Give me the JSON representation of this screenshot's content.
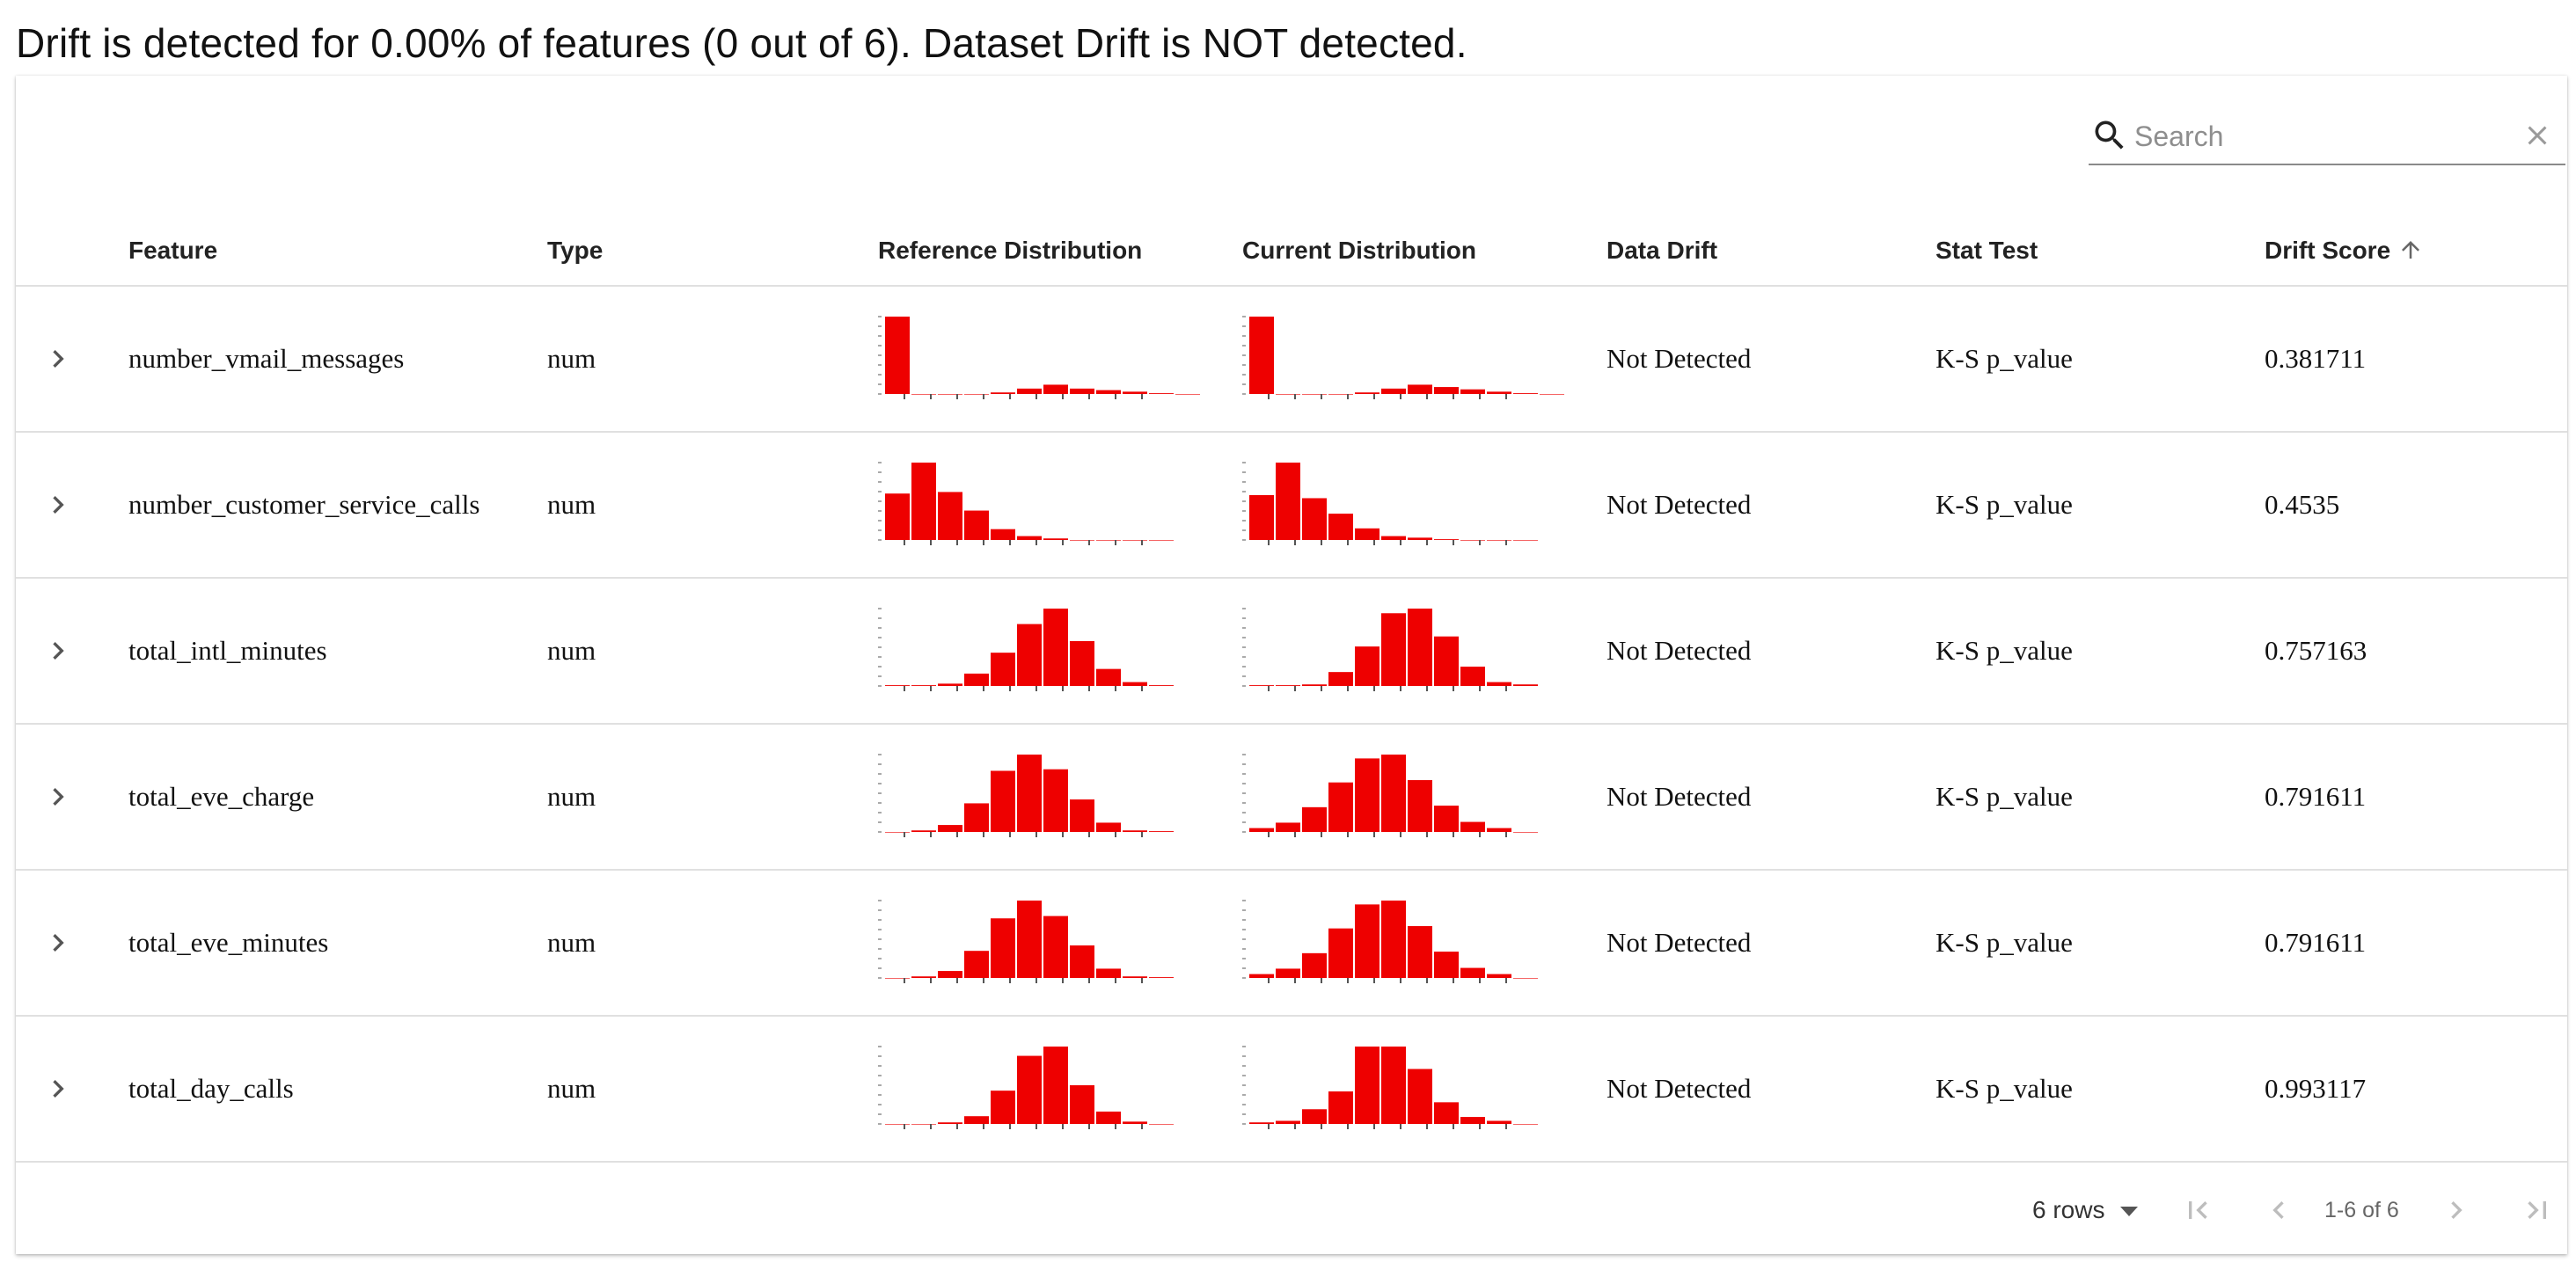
{
  "summary": "Drift is detected for 0.00% of features (0 out of 6). Dataset Drift is NOT detected.",
  "search": {
    "placeholder": "Search",
    "value": ""
  },
  "columns": {
    "feature": "Feature",
    "type": "Type",
    "reference": "Reference Distribution",
    "current": "Current Distribution",
    "drift": "Data Drift",
    "stat_test": "Stat Test",
    "score": "Drift Score"
  },
  "sort": {
    "column": "Drift Score",
    "direction": "ascending",
    "icon": "arrow-up-icon"
  },
  "accent_color": "#ee0000",
  "rows": [
    {
      "feature": "number_vmail_messages",
      "type": "num",
      "drift": "Not Detected",
      "stat_test": "K-S p_value",
      "score": "0.381711",
      "ref_hist": [
        100,
        0,
        0,
        0,
        2,
        7,
        12,
        7,
        5,
        3,
        1,
        0
      ],
      "cur_hist": [
        100,
        0,
        0,
        0,
        2,
        7,
        12,
        9,
        6,
        3,
        1,
        0
      ]
    },
    {
      "feature": "number_customer_service_calls",
      "type": "num",
      "drift": "Not Detected",
      "stat_test": "K-S p_value",
      "score": "0.4535",
      "ref_hist": [
        60,
        100,
        62,
        38,
        14,
        5,
        2,
        0,
        0,
        0,
        0
      ],
      "cur_hist": [
        58,
        100,
        54,
        34,
        15,
        5,
        3,
        1,
        0,
        0,
        0
      ]
    },
    {
      "feature": "total_intl_minutes",
      "type": "num",
      "drift": "Not Detected",
      "stat_test": "K-S p_value",
      "score": "0.757163",
      "ref_hist": [
        1,
        1,
        3,
        16,
        43,
        80,
        100,
        58,
        22,
        5,
        1
      ],
      "cur_hist": [
        1,
        1,
        2,
        18,
        51,
        94,
        100,
        64,
        25,
        5,
        2
      ]
    },
    {
      "feature": "total_eve_charge",
      "type": "num",
      "drift": "Not Detected",
      "stat_test": "K-S p_value",
      "score": "0.791611",
      "ref_hist": [
        0,
        2,
        9,
        37,
        79,
        100,
        81,
        42,
        12,
        2,
        1
      ],
      "cur_hist": [
        5,
        12,
        32,
        64,
        95,
        100,
        67,
        34,
        13,
        5,
        0
      ]
    },
    {
      "feature": "total_eve_minutes",
      "type": "num",
      "drift": "Not Detected",
      "stat_test": "K-S p_value",
      "score": "0.791611",
      "ref_hist": [
        0,
        2,
        9,
        35,
        77,
        100,
        80,
        42,
        12,
        2,
        1
      ],
      "cur_hist": [
        5,
        12,
        32,
        64,
        95,
        100,
        67,
        34,
        13,
        5,
        0
      ]
    },
    {
      "feature": "total_day_calls",
      "type": "num",
      "drift": "Not Detected",
      "stat_test": "K-S p_value",
      "score": "0.993117",
      "ref_hist": [
        0,
        0,
        2,
        10,
        43,
        88,
        100,
        50,
        16,
        3,
        0
      ],
      "cur_hist": [
        2,
        4,
        19,
        42,
        100,
        100,
        71,
        28,
        9,
        4,
        0
      ]
    }
  ],
  "pagination": {
    "rows_per_page": "6 rows",
    "range": "1-6 of 6"
  }
}
